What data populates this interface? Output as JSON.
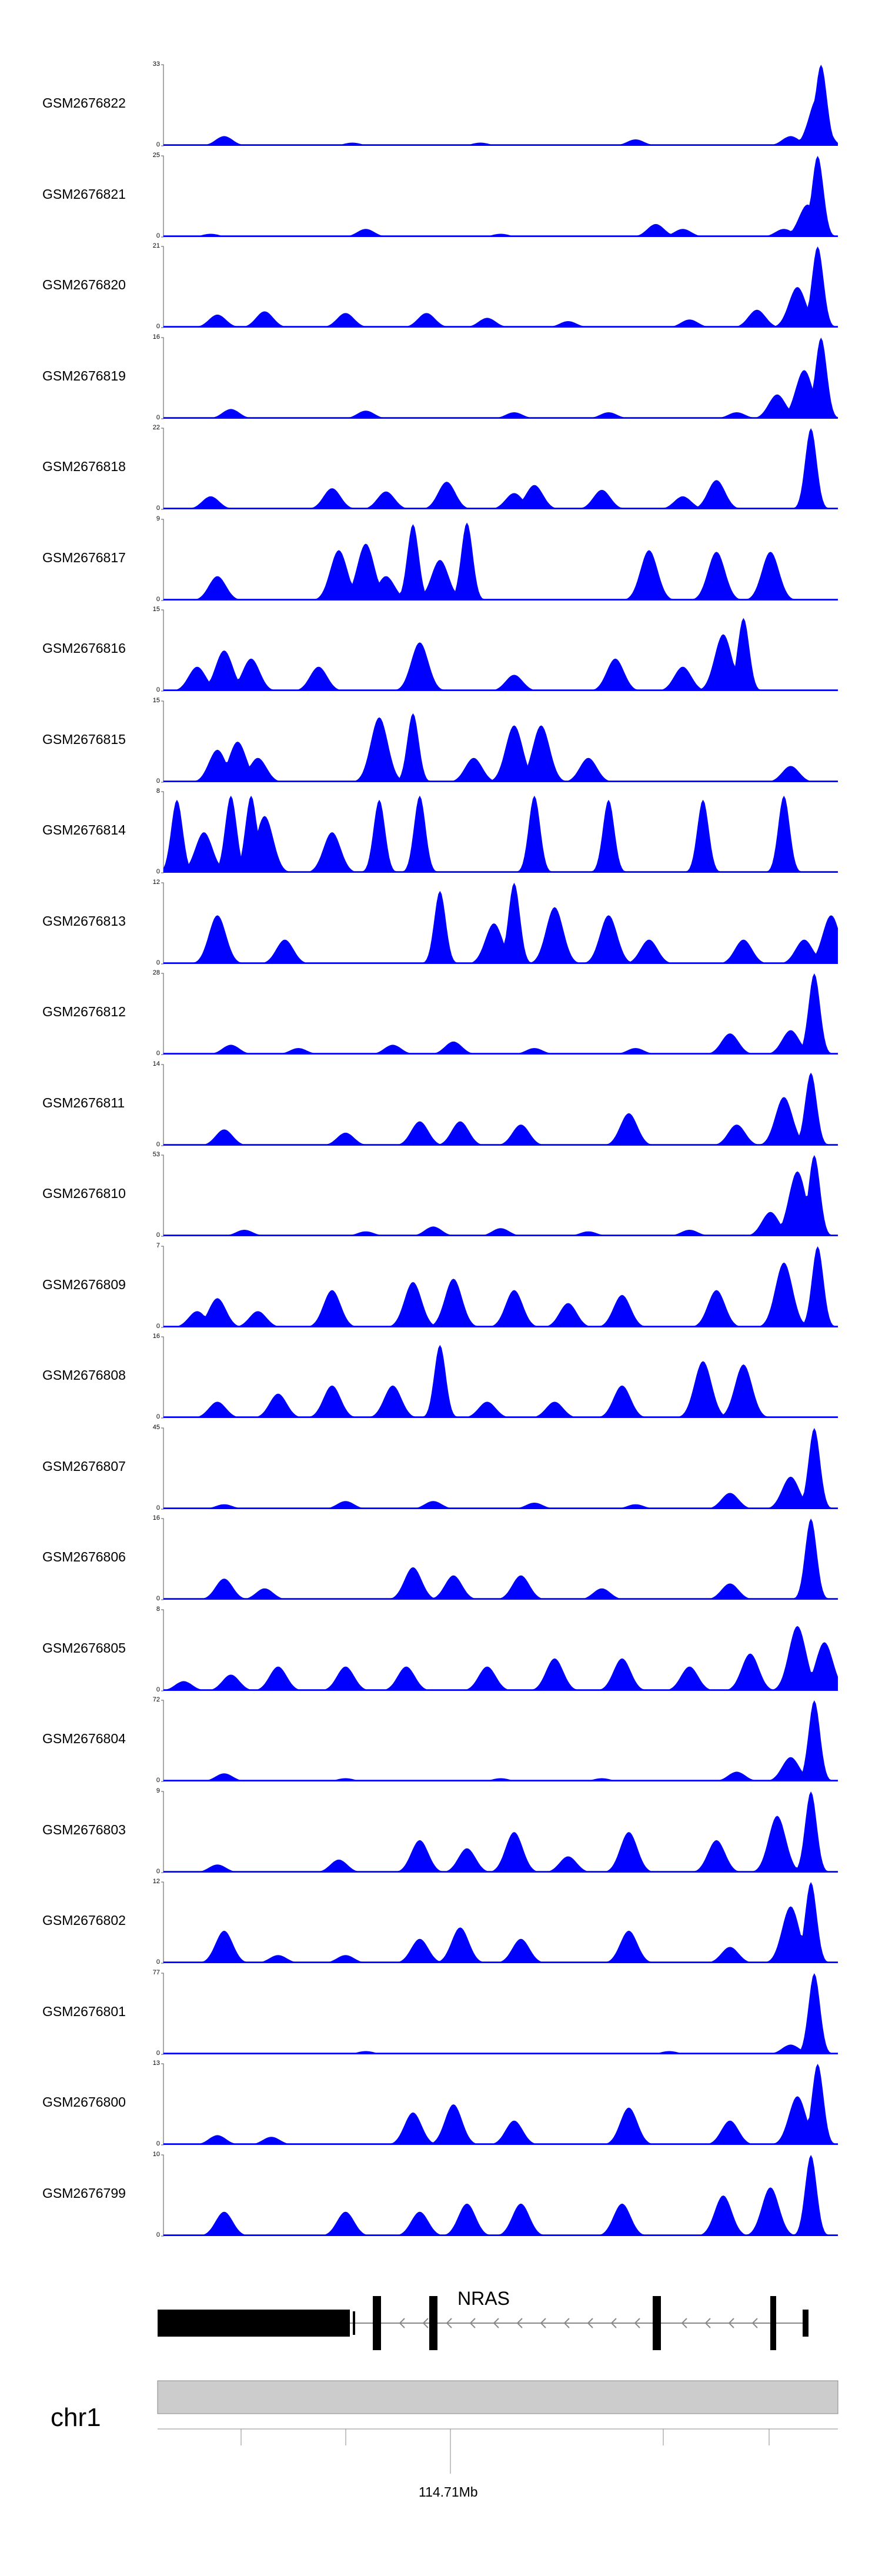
{
  "chart_data": {
    "type": "area",
    "color": "#0000ff",
    "tracks": [
      {
        "name": "GSM2676822",
        "ymax": 33,
        "ymin": 0,
        "peaks": [
          [
            0.09,
            0.12
          ],
          [
            0.28,
            0.04
          ],
          [
            0.47,
            0.04
          ],
          [
            0.7,
            0.08
          ],
          [
            0.93,
            0.12
          ],
          [
            0.97,
            0.6
          ],
          [
            0.975,
            1.0
          ]
        ]
      },
      {
        "name": "GSM2676821",
        "ymax": 25,
        "ymin": 0,
        "peaks": [
          [
            0.07,
            0.04
          ],
          [
            0.3,
            0.1
          ],
          [
            0.5,
            0.04
          ],
          [
            0.73,
            0.16
          ],
          [
            0.77,
            0.1
          ],
          [
            0.92,
            0.1
          ],
          [
            0.955,
            0.4
          ],
          [
            0.97,
            1.0
          ]
        ]
      },
      {
        "name": "GSM2676820",
        "ymax": 21,
        "ymin": 0,
        "peaks": [
          [
            0.08,
            0.16
          ],
          [
            0.15,
            0.2
          ],
          [
            0.27,
            0.18
          ],
          [
            0.39,
            0.18
          ],
          [
            0.48,
            0.12
          ],
          [
            0.6,
            0.08
          ],
          [
            0.78,
            0.1
          ],
          [
            0.88,
            0.22
          ],
          [
            0.94,
            0.5
          ],
          [
            0.97,
            1.0
          ]
        ]
      },
      {
        "name": "GSM2676819",
        "ymax": 16,
        "ymin": 0,
        "peaks": [
          [
            0.1,
            0.12
          ],
          [
            0.3,
            0.1
          ],
          [
            0.52,
            0.08
          ],
          [
            0.66,
            0.08
          ],
          [
            0.85,
            0.08
          ],
          [
            0.91,
            0.3
          ],
          [
            0.95,
            0.6
          ],
          [
            0.975,
            1.0
          ]
        ]
      },
      {
        "name": "GSM2676818",
        "ymax": 22,
        "ymin": 0,
        "peaks": [
          [
            0.07,
            0.16
          ],
          [
            0.25,
            0.26
          ],
          [
            0.33,
            0.22
          ],
          [
            0.42,
            0.34
          ],
          [
            0.52,
            0.2
          ],
          [
            0.55,
            0.3
          ],
          [
            0.65,
            0.24
          ],
          [
            0.77,
            0.16
          ],
          [
            0.82,
            0.36
          ],
          [
            0.96,
            1.0
          ]
        ]
      },
      {
        "name": "GSM2676817",
        "ymax": 9,
        "ymin": 0,
        "peaks": [
          [
            0.08,
            0.3
          ],
          [
            0.26,
            0.62
          ],
          [
            0.3,
            0.7
          ],
          [
            0.33,
            0.3
          ],
          [
            0.37,
            0.94
          ],
          [
            0.41,
            0.5
          ],
          [
            0.45,
            0.96
          ],
          [
            0.72,
            0.62
          ],
          [
            0.82,
            0.6
          ],
          [
            0.9,
            0.6
          ]
        ]
      },
      {
        "name": "GSM2676816",
        "ymax": 15,
        "ymin": 0,
        "peaks": [
          [
            0.05,
            0.3
          ],
          [
            0.09,
            0.5
          ],
          [
            0.13,
            0.4
          ],
          [
            0.23,
            0.3
          ],
          [
            0.38,
            0.6
          ],
          [
            0.52,
            0.2
          ],
          [
            0.67,
            0.4
          ],
          [
            0.77,
            0.3
          ],
          [
            0.83,
            0.7
          ],
          [
            0.86,
            0.9
          ]
        ]
      },
      {
        "name": "GSM2676815",
        "ymax": 15,
        "ymin": 0,
        "peaks": [
          [
            0.08,
            0.4
          ],
          [
            0.11,
            0.5
          ],
          [
            0.14,
            0.3
          ],
          [
            0.32,
            0.8
          ],
          [
            0.37,
            0.85
          ],
          [
            0.46,
            0.3
          ],
          [
            0.52,
            0.7
          ],
          [
            0.56,
            0.7
          ],
          [
            0.63,
            0.3
          ],
          [
            0.93,
            0.2
          ]
        ]
      },
      {
        "name": "GSM2676814",
        "ymax": 8,
        "ymin": 0,
        "peaks": [
          [
            0.02,
            0.9
          ],
          [
            0.06,
            0.5
          ],
          [
            0.1,
            0.95
          ],
          [
            0.13,
            0.95
          ],
          [
            0.15,
            0.7
          ],
          [
            0.25,
            0.5
          ],
          [
            0.32,
            0.9
          ],
          [
            0.38,
            0.95
          ],
          [
            0.55,
            0.95
          ],
          [
            0.66,
            0.9
          ],
          [
            0.8,
            0.9
          ],
          [
            0.92,
            0.95
          ]
        ]
      },
      {
        "name": "GSM2676813",
        "ymax": 12,
        "ymin": 0,
        "peaks": [
          [
            0.08,
            0.6
          ],
          [
            0.18,
            0.3
          ],
          [
            0.41,
            0.9
          ],
          [
            0.49,
            0.5
          ],
          [
            0.52,
            1.0
          ],
          [
            0.58,
            0.7
          ],
          [
            0.66,
            0.6
          ],
          [
            0.72,
            0.3
          ],
          [
            0.86,
            0.3
          ],
          [
            0.95,
            0.3
          ],
          [
            0.99,
            0.6
          ]
        ]
      },
      {
        "name": "GSM2676812",
        "ymax": 28,
        "ymin": 0,
        "peaks": [
          [
            0.1,
            0.12
          ],
          [
            0.2,
            0.08
          ],
          [
            0.34,
            0.12
          ],
          [
            0.43,
            0.16
          ],
          [
            0.55,
            0.08
          ],
          [
            0.7,
            0.08
          ],
          [
            0.84,
            0.26
          ],
          [
            0.93,
            0.3
          ],
          [
            0.965,
            1.0
          ]
        ]
      },
      {
        "name": "GSM2676811",
        "ymax": 14,
        "ymin": 0,
        "peaks": [
          [
            0.09,
            0.2
          ],
          [
            0.27,
            0.16
          ],
          [
            0.38,
            0.3
          ],
          [
            0.44,
            0.3
          ],
          [
            0.53,
            0.26
          ],
          [
            0.69,
            0.4
          ],
          [
            0.85,
            0.26
          ],
          [
            0.92,
            0.6
          ],
          [
            0.96,
            0.9
          ]
        ]
      },
      {
        "name": "GSM2676810",
        "ymax": 53,
        "ymin": 0,
        "peaks": [
          [
            0.12,
            0.08
          ],
          [
            0.3,
            0.06
          ],
          [
            0.4,
            0.12
          ],
          [
            0.5,
            0.1
          ],
          [
            0.63,
            0.06
          ],
          [
            0.78,
            0.08
          ],
          [
            0.9,
            0.3
          ],
          [
            0.94,
            0.8
          ],
          [
            0.965,
            1.0
          ]
        ]
      },
      {
        "name": "GSM2676809",
        "ymax": 7,
        "ymin": 0,
        "peaks": [
          [
            0.05,
            0.2
          ],
          [
            0.08,
            0.36
          ],
          [
            0.14,
            0.2
          ],
          [
            0.25,
            0.46
          ],
          [
            0.37,
            0.56
          ],
          [
            0.43,
            0.6
          ],
          [
            0.52,
            0.46
          ],
          [
            0.6,
            0.3
          ],
          [
            0.68,
            0.4
          ],
          [
            0.82,
            0.46
          ],
          [
            0.92,
            0.8
          ],
          [
            0.97,
            1.0
          ]
        ]
      },
      {
        "name": "GSM2676808",
        "ymax": 16,
        "ymin": 0,
        "peaks": [
          [
            0.08,
            0.2
          ],
          [
            0.17,
            0.3
          ],
          [
            0.25,
            0.4
          ],
          [
            0.34,
            0.4
          ],
          [
            0.41,
            0.9
          ],
          [
            0.48,
            0.2
          ],
          [
            0.58,
            0.2
          ],
          [
            0.68,
            0.4
          ],
          [
            0.8,
            0.7
          ],
          [
            0.86,
            0.66
          ]
        ]
      },
      {
        "name": "GSM2676807",
        "ymax": 45,
        "ymin": 0,
        "peaks": [
          [
            0.09,
            0.06
          ],
          [
            0.27,
            0.1
          ],
          [
            0.4,
            0.1
          ],
          [
            0.55,
            0.08
          ],
          [
            0.7,
            0.06
          ],
          [
            0.84,
            0.2
          ],
          [
            0.93,
            0.4
          ],
          [
            0.965,
            1.0
          ]
        ]
      },
      {
        "name": "GSM2676806",
        "ymax": 16,
        "ymin": 0,
        "peaks": [
          [
            0.09,
            0.26
          ],
          [
            0.15,
            0.14
          ],
          [
            0.37,
            0.4
          ],
          [
            0.43,
            0.3
          ],
          [
            0.53,
            0.3
          ],
          [
            0.65,
            0.14
          ],
          [
            0.84,
            0.2
          ],
          [
            0.96,
            1.0
          ]
        ]
      },
      {
        "name": "GSM2676805",
        "ymax": 8,
        "ymin": 0,
        "peaks": [
          [
            0.03,
            0.12
          ],
          [
            0.1,
            0.2
          ],
          [
            0.17,
            0.3
          ],
          [
            0.27,
            0.3
          ],
          [
            0.36,
            0.3
          ],
          [
            0.48,
            0.3
          ],
          [
            0.58,
            0.4
          ],
          [
            0.68,
            0.4
          ],
          [
            0.78,
            0.3
          ],
          [
            0.87,
            0.46
          ],
          [
            0.94,
            0.8
          ],
          [
            0.98,
            0.6
          ]
        ]
      },
      {
        "name": "GSM2676804",
        "ymax": 72,
        "ymin": 0,
        "peaks": [
          [
            0.09,
            0.1
          ],
          [
            0.27,
            0.04
          ],
          [
            0.5,
            0.04
          ],
          [
            0.65,
            0.04
          ],
          [
            0.85,
            0.12
          ],
          [
            0.93,
            0.3
          ],
          [
            0.965,
            1.0
          ]
        ]
      },
      {
        "name": "GSM2676803",
        "ymax": 9,
        "ymin": 0,
        "peaks": [
          [
            0.08,
            0.1
          ],
          [
            0.26,
            0.16
          ],
          [
            0.38,
            0.4
          ],
          [
            0.45,
            0.3
          ],
          [
            0.52,
            0.5
          ],
          [
            0.6,
            0.2
          ],
          [
            0.69,
            0.5
          ],
          [
            0.82,
            0.4
          ],
          [
            0.91,
            0.7
          ],
          [
            0.96,
            1.0
          ]
        ]
      },
      {
        "name": "GSM2676802",
        "ymax": 12,
        "ymin": 0,
        "peaks": [
          [
            0.09,
            0.4
          ],
          [
            0.17,
            0.1
          ],
          [
            0.27,
            0.1
          ],
          [
            0.38,
            0.3
          ],
          [
            0.44,
            0.44
          ],
          [
            0.53,
            0.3
          ],
          [
            0.69,
            0.4
          ],
          [
            0.84,
            0.2
          ],
          [
            0.93,
            0.7
          ],
          [
            0.96,
            1.0
          ]
        ]
      },
      {
        "name": "GSM2676801",
        "ymax": 77,
        "ymin": 0,
        "peaks": [
          [
            0.12,
            0.02
          ],
          [
            0.3,
            0.04
          ],
          [
            0.55,
            0.02
          ],
          [
            0.75,
            0.04
          ],
          [
            0.93,
            0.12
          ],
          [
            0.965,
            1.0
          ]
        ]
      },
      {
        "name": "GSM2676800",
        "ymax": 13,
        "ymin": 0,
        "peaks": [
          [
            0.08,
            0.12
          ],
          [
            0.16,
            0.1
          ],
          [
            0.37,
            0.4
          ],
          [
            0.43,
            0.5
          ],
          [
            0.52,
            0.3
          ],
          [
            0.69,
            0.46
          ],
          [
            0.84,
            0.3
          ],
          [
            0.94,
            0.6
          ],
          [
            0.97,
            1.0
          ]
        ]
      },
      {
        "name": "GSM2676799",
        "ymax": 10,
        "ymin": 0,
        "peaks": [
          [
            0.09,
            0.3
          ],
          [
            0.27,
            0.3
          ],
          [
            0.38,
            0.3
          ],
          [
            0.45,
            0.4
          ],
          [
            0.53,
            0.4
          ],
          [
            0.68,
            0.4
          ],
          [
            0.83,
            0.5
          ],
          [
            0.9,
            0.6
          ],
          [
            0.96,
            1.0
          ]
        ]
      }
    ],
    "gene": {
      "name": "NRAS",
      "exons": [
        0.0,
        0.29,
        0.33,
        0.41,
        0.74,
        0.91,
        0.96
      ],
      "strand": "-"
    },
    "chromosome": {
      "name": "chr1",
      "position_label": "114.71Mb"
    }
  }
}
